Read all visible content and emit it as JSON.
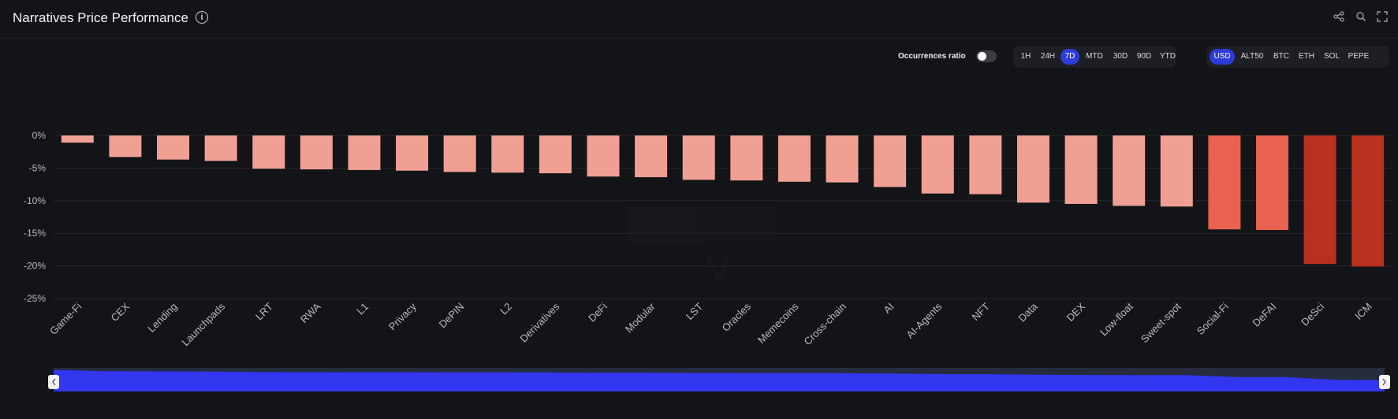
{
  "header": {
    "title": "Narratives Price Performance",
    "info_icon": "info-icon",
    "share_icon": "share-icon",
    "search_icon": "search-icon",
    "fullscreen_icon": "fullscreen-icon"
  },
  "controls": {
    "occurrences_label": "Occurrences ratio",
    "occurrences_on": false,
    "timeframes": [
      "1H",
      "24H",
      "7D",
      "MTD",
      "30D",
      "90D",
      "YTD"
    ],
    "active_timeframe": "7D",
    "currencies": [
      "USD",
      "ALT50",
      "BTC",
      "ETH",
      "SOL",
      "PEPE"
    ],
    "active_currency": "USD"
  },
  "colors": {
    "accent": "#2f3bd8",
    "bar_light": "#f0a093",
    "bar_medium": "#e8624f",
    "bar_dark": "#b9301f",
    "grid": "#24262d",
    "navigator_fill": "#3236ef",
    "navigator_bg": "#262b3d"
  },
  "chart_data": {
    "type": "bar",
    "title": "Narratives Price Performance",
    "xlabel": "",
    "ylabel": "",
    "ylim": [
      -25,
      0
    ],
    "yticks": [
      "0%",
      "-5%",
      "-10%",
      "-15%",
      "-20%",
      "-25%"
    ],
    "grid": true,
    "categories": [
      "Game-Fi",
      "CEX",
      "Lending",
      "Launchpads",
      "LRT",
      "RWA",
      "L1",
      "Privacy",
      "DePIN",
      "L2",
      "Derivatives",
      "DeFi",
      "Modular",
      "LST",
      "Oracles",
      "Memecoins",
      "Cross-chain",
      "AI",
      "AI-Agents",
      "NFT",
      "Data",
      "DEX",
      "Low-float",
      "Sweet-spot",
      "Social-Fi",
      "DeFAI",
      "DeSci",
      "ICM"
    ],
    "values": [
      -1.1,
      -3.3,
      -3.7,
      -3.9,
      -5.1,
      -5.2,
      -5.3,
      -5.4,
      -5.6,
      -5.7,
      -5.8,
      -6.3,
      -6.4,
      -6.8,
      -6.9,
      -7.1,
      -7.2,
      -7.9,
      -8.9,
      -9.0,
      -10.3,
      -10.5,
      -10.8,
      -10.9,
      -14.4,
      -14.5,
      -19.7,
      -20.1
    ],
    "navigator": true
  }
}
